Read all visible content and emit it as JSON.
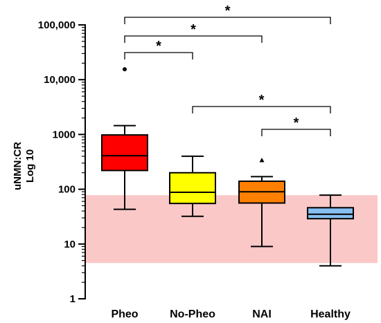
{
  "chart_data": {
    "type": "box",
    "ylabel": [
      "uNMN:CR",
      "Log 10"
    ],
    "y_scale": "log10",
    "ylim": [
      1,
      100000
    ],
    "y_ticks": [
      {
        "value": 1,
        "label": "1"
      },
      {
        "value": 10,
        "label": "10"
      },
      {
        "value": 100,
        "label": "100"
      },
      {
        "value": 1000,
        "label": "1000"
      },
      {
        "value": 10000,
        "label": "10,000"
      },
      {
        "value": 100000,
        "label": "100,000"
      }
    ],
    "categories": [
      "Pheo",
      "No-Pheo",
      "NAI",
      "Healthy"
    ],
    "reference_band": {
      "low": 4.5,
      "high": 78,
      "color": "#fbc8c8"
    },
    "boxes": [
      {
        "category": "Pheo",
        "color": "#ff0000",
        "whisker_low": 43,
        "q1": 220,
        "median": 410,
        "q3": 980,
        "whisker_high": 1450,
        "outliers": [
          {
            "value": 15500,
            "marker": "circle"
          }
        ]
      },
      {
        "category": "No-Pheo",
        "color": "#ffff00",
        "whisker_low": 32,
        "q1": 55,
        "median": 88,
        "q3": 200,
        "whisker_high": 400,
        "outliers": []
      },
      {
        "category": "NAI",
        "color": "#ff8000",
        "whisker_low": 9,
        "q1": 56,
        "median": 90,
        "q3": 140,
        "whisker_high": 170,
        "outliers": [
          {
            "value": 340,
            "marker": "triangle"
          }
        ]
      },
      {
        "category": "Healthy",
        "color": "#87bff0",
        "whisker_low": 4,
        "q1": 29,
        "median": 35,
        "q3": 46,
        "whisker_high": 78,
        "outliers": []
      }
    ],
    "significance": [
      {
        "from": "Pheo",
        "to": "Healthy",
        "label": "*"
      },
      {
        "from": "Pheo",
        "to": "NAI",
        "label": "*"
      },
      {
        "from": "Pheo",
        "to": "No-Pheo",
        "label": "*"
      },
      {
        "from": "No-Pheo",
        "to": "Healthy",
        "label": "*"
      },
      {
        "from": "NAI",
        "to": "Healthy",
        "label": "*"
      }
    ]
  }
}
